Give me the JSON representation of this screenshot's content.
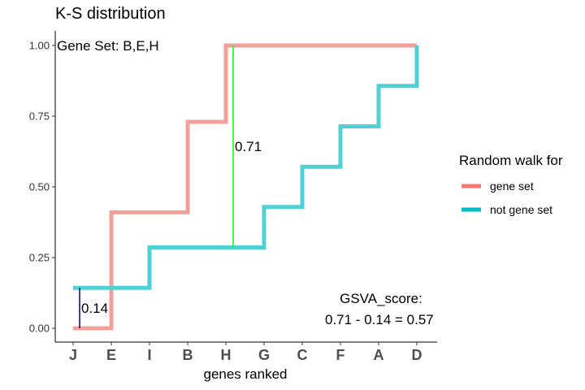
{
  "chart_data": {
    "type": "line",
    "title": "K-S distribution",
    "xlabel": "genes ranked",
    "ylabel": "",
    "categories": [
      "J",
      "E",
      "I",
      "B",
      "H",
      "G",
      "C",
      "F",
      "A",
      "D"
    ],
    "ylim": [
      0,
      1
    ],
    "yticks": [
      "0.00",
      "0.25",
      "0.50",
      "0.75",
      "1.00"
    ],
    "ytick_values": [
      0,
      0.25,
      0.5,
      0.75,
      1
    ],
    "grid": false,
    "legend": {
      "title": "Random walk for",
      "placement": "right",
      "entries": [
        "gene set",
        "not gene set"
      ]
    },
    "series": [
      {
        "name": "gene set",
        "color": "#F8766D",
        "values": [
          0,
          0.41,
          0.41,
          0.73,
          1.0,
          1.0,
          1.0,
          1.0,
          1.0,
          1.0
        ]
      },
      {
        "name": "not gene set",
        "color": "#00BFC4",
        "values": [
          0.143,
          0.143,
          0.286,
          0.286,
          0.286,
          0.429,
          0.571,
          0.714,
          0.857,
          1.0
        ]
      }
    ],
    "annotations": {
      "gene_set": "Gene Set: B,E,H",
      "neg_dev_label": "0.14",
      "pos_dev_label": "0.71",
      "score_title": "GSVA_score:",
      "score_formula": "0.71 - 0.14 = 0.57"
    },
    "deviations": {
      "neg": {
        "x_index": 0,
        "from": 0,
        "to": 0.143,
        "color": "#00008B"
      },
      "pos": {
        "x_index": 4,
        "from": 0.286,
        "to": 1.0,
        "color": "#00FF00"
      }
    }
  }
}
